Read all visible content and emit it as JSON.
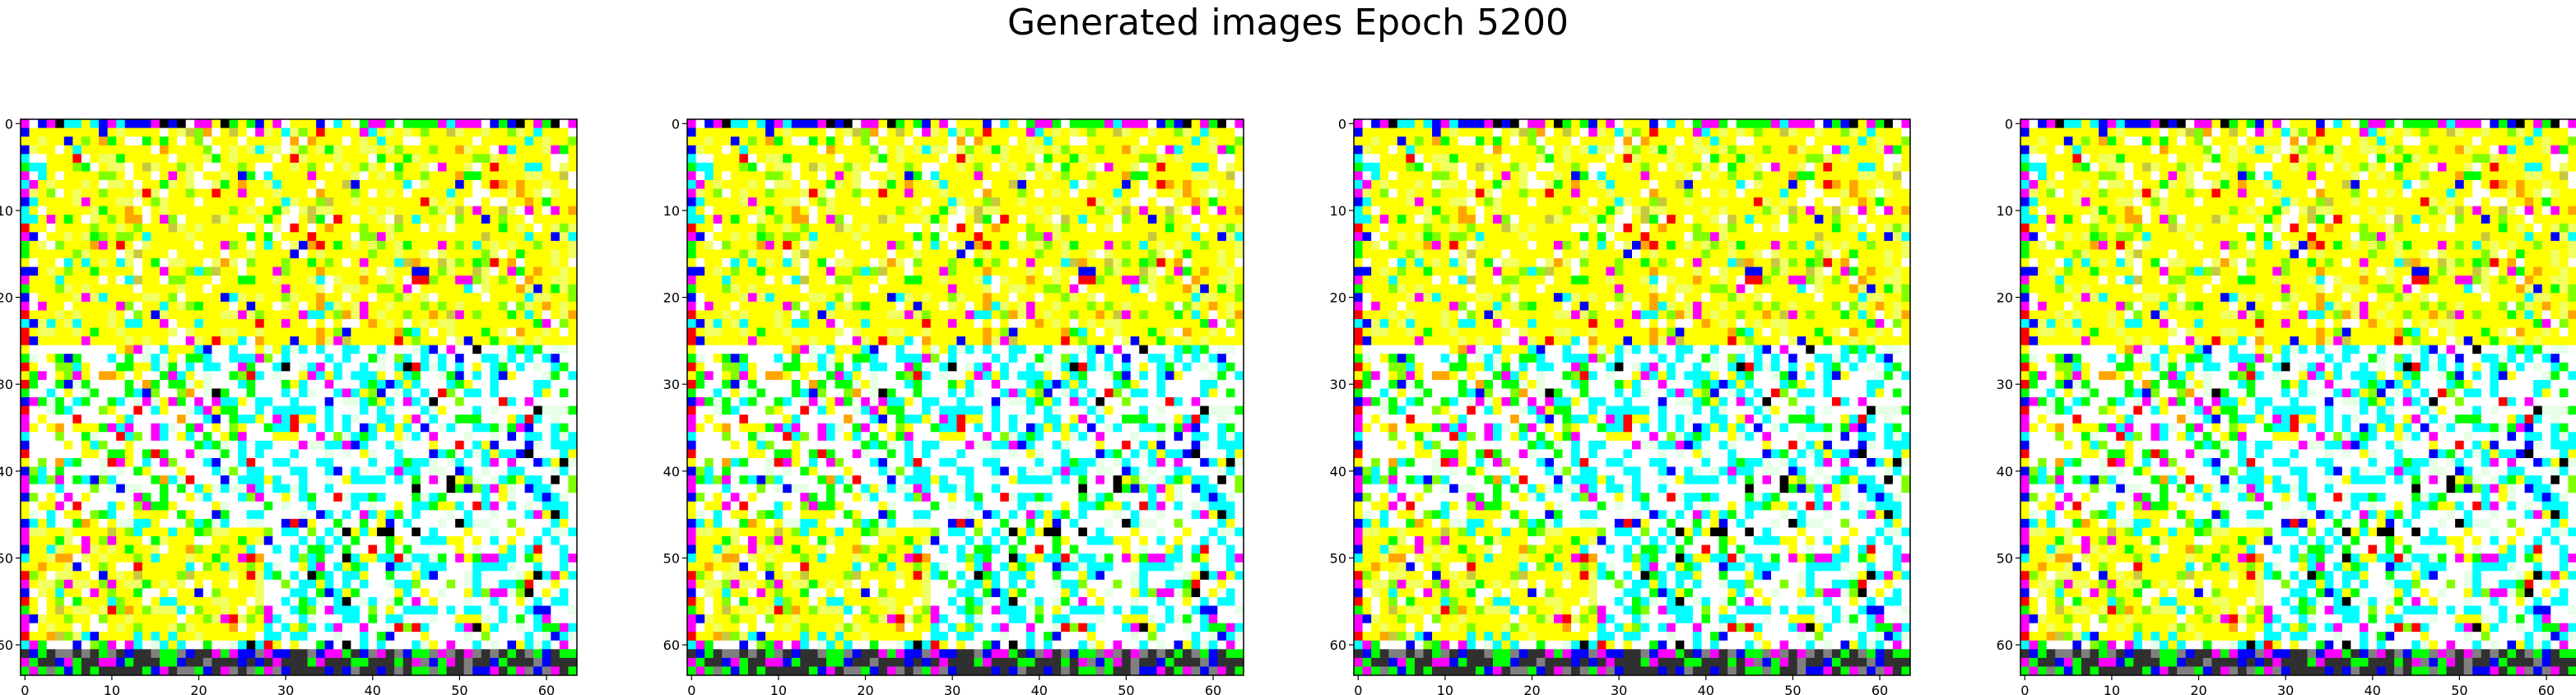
{
  "figure": {
    "title": "Generated images Epoch 5200"
  },
  "chart_data": [
    {
      "type": "heatmap",
      "title": "",
      "xlabel": "",
      "ylabel": "",
      "image_shape": [
        64,
        64,
        3
      ],
      "xlim": [
        -0.5,
        63.5
      ],
      "ylim": [
        63.5,
        -0.5
      ],
      "xticks": [
        0,
        10,
        20,
        30,
        40,
        50,
        60
      ],
      "yticks": [
        0,
        10,
        20,
        30,
        40,
        50,
        60
      ],
      "seed": 5200,
      "palette": [
        "#ffffff",
        "#ffff00",
        "#00ffff",
        "#00ff00",
        "#ff00ff",
        "#0000ff",
        "#ff0000",
        "#ffa500",
        "#80ff00",
        "#e6ffe6",
        "#000000"
      ]
    },
    {
      "type": "heatmap",
      "title": "",
      "xlabel": "",
      "ylabel": "",
      "image_shape": [
        64,
        64,
        3
      ],
      "xlim": [
        -0.5,
        63.5
      ],
      "ylim": [
        63.5,
        -0.5
      ],
      "xticks": [
        0,
        10,
        20,
        30,
        40,
        50,
        60
      ],
      "yticks": [
        0,
        10,
        20,
        30,
        40,
        50,
        60
      ],
      "seed": 5200,
      "palette": [
        "#ffffff",
        "#ffff00",
        "#00ffff",
        "#00ff00",
        "#ff00ff",
        "#0000ff",
        "#ff0000",
        "#ffa500",
        "#80ff00",
        "#e6ffe6",
        "#000000"
      ]
    },
    {
      "type": "heatmap",
      "title": "",
      "xlabel": "",
      "ylabel": "",
      "image_shape": [
        64,
        64,
        3
      ],
      "xlim": [
        -0.5,
        63.5
      ],
      "ylim": [
        63.5,
        -0.5
      ],
      "xticks": [
        0,
        10,
        20,
        30,
        40,
        50,
        60
      ],
      "yticks": [
        0,
        10,
        20,
        30,
        40,
        50,
        60
      ],
      "seed": 5200,
      "palette": [
        "#ffffff",
        "#ffff00",
        "#00ffff",
        "#00ff00",
        "#ff00ff",
        "#0000ff",
        "#ff0000",
        "#ffa500",
        "#80ff00",
        "#e6ffe6",
        "#000000"
      ]
    },
    {
      "type": "heatmap",
      "title": "",
      "xlabel": "",
      "ylabel": "",
      "image_shape": [
        64,
        64,
        3
      ],
      "xlim": [
        -0.5,
        63.5
      ],
      "ylim": [
        63.5,
        -0.5
      ],
      "xticks": [
        0,
        10,
        20,
        30,
        40,
        50,
        60
      ],
      "yticks": [
        0,
        10,
        20,
        30,
        40,
        50,
        60
      ],
      "seed": 5200,
      "palette": [
        "#ffffff",
        "#ffff00",
        "#00ffff",
        "#00ff00",
        "#ff00ff",
        "#0000ff",
        "#ff0000",
        "#ffa500",
        "#80ff00",
        "#e6ffe6",
        "#000000"
      ]
    }
  ]
}
